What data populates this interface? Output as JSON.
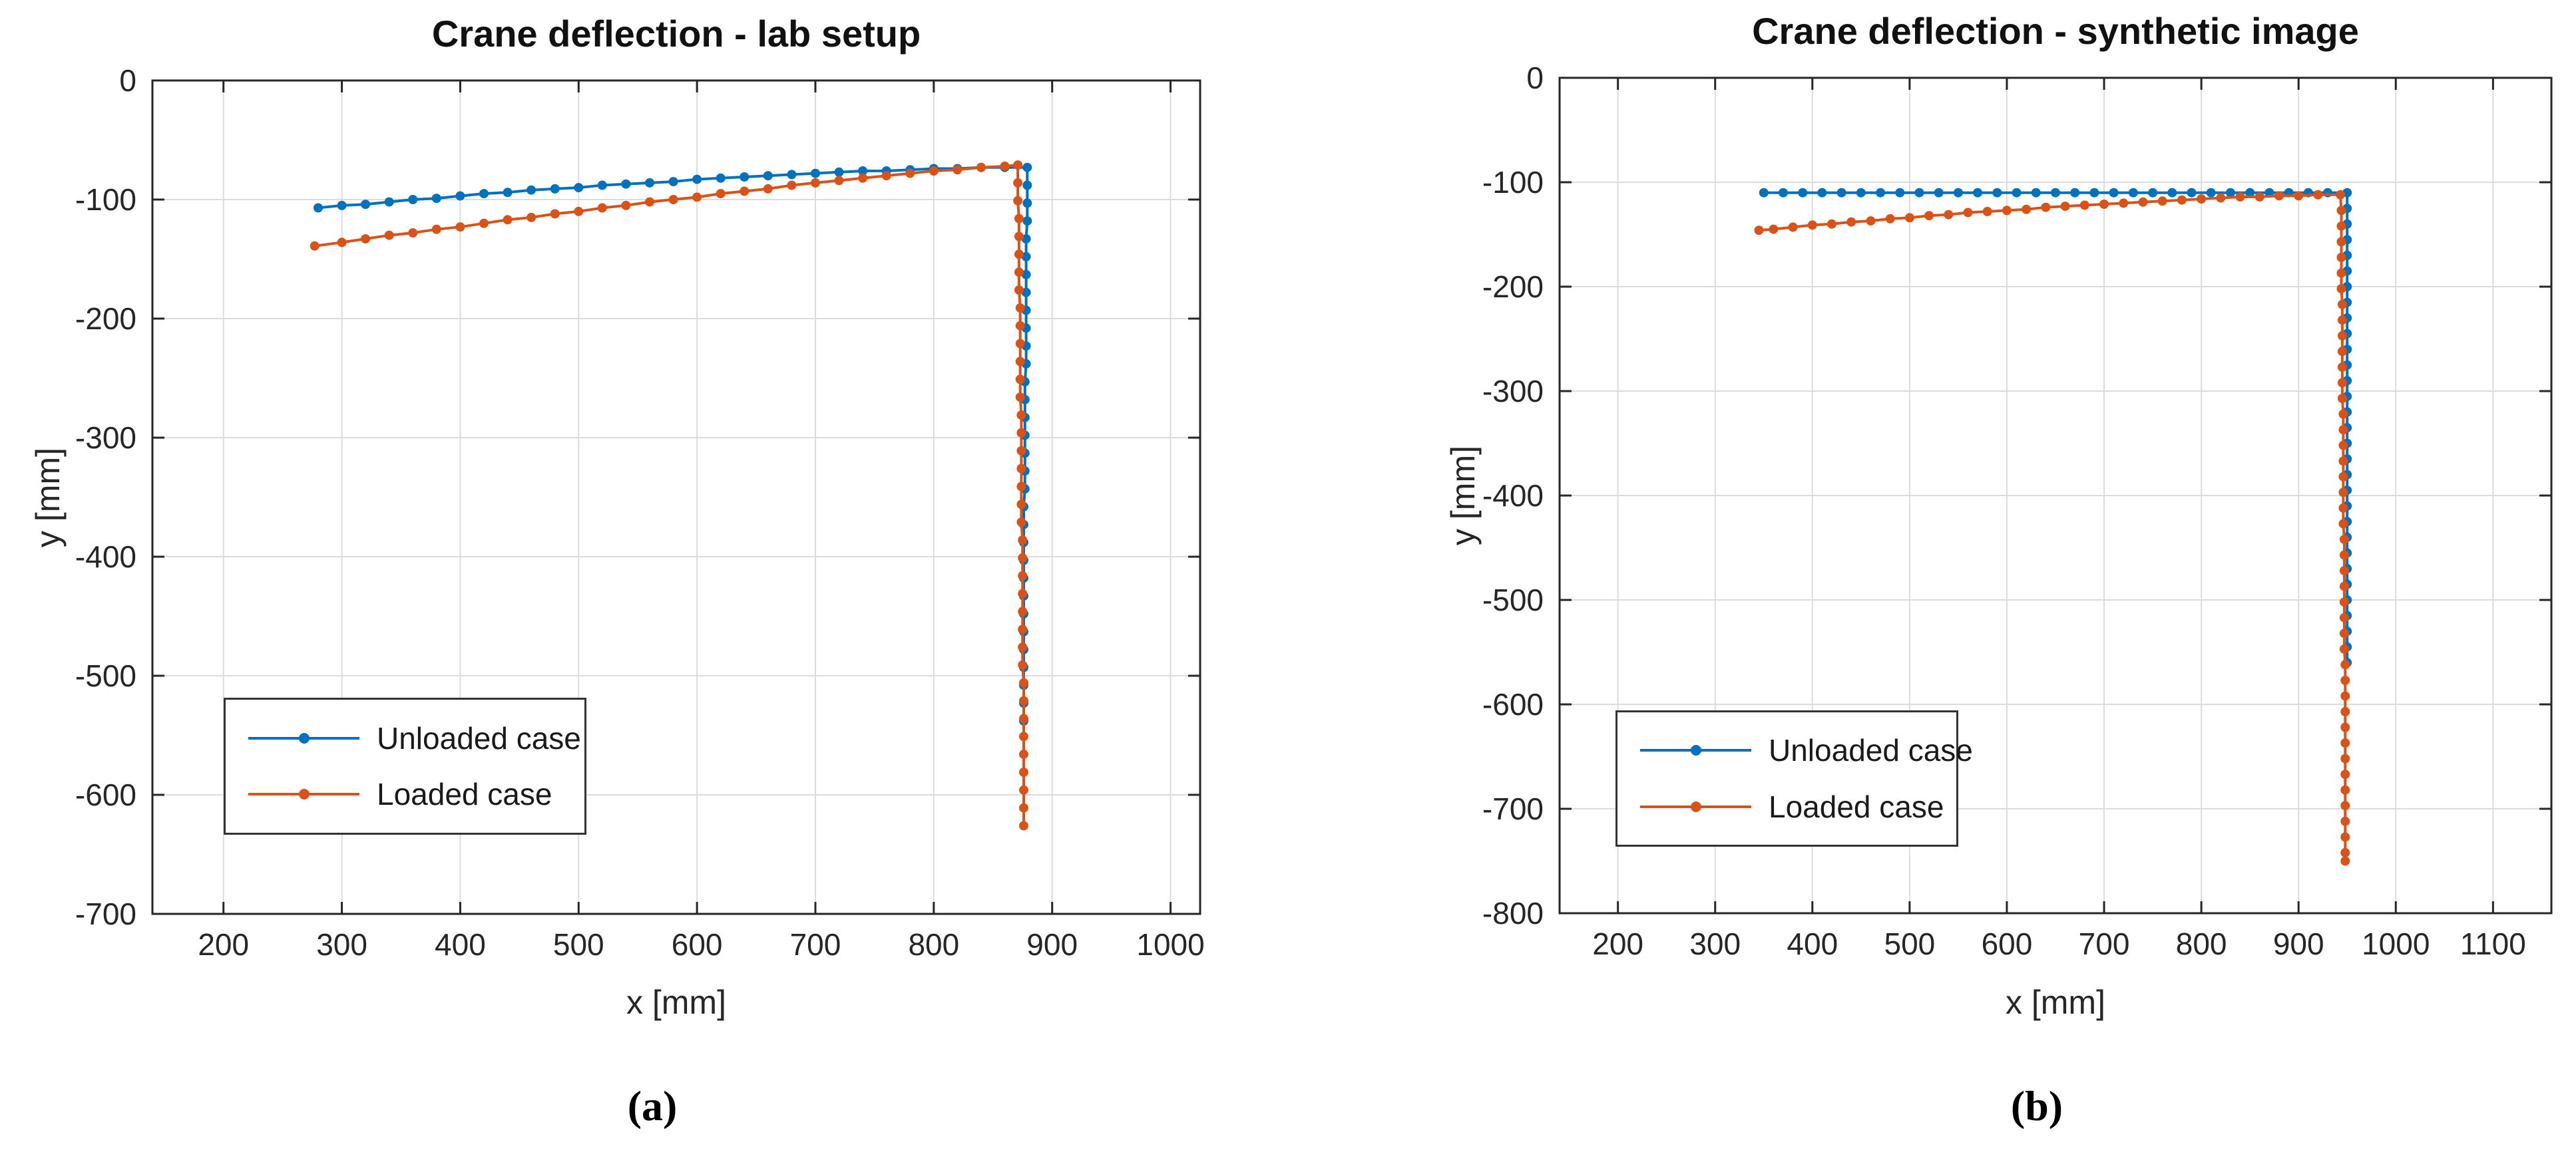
{
  "figure": {
    "background": "#ffffff",
    "captions": [
      {
        "label": "(a)"
      },
      {
        "label": "(b)"
      }
    ]
  },
  "palette": {
    "series_blue": "#0072BD",
    "series_orange": "#D95319",
    "axis_box": "#262626",
    "grid_line": "#dcdcdc",
    "tick_label": "#262626",
    "title_text": "#111111",
    "legend_border": "#333333"
  },
  "chart_data": [
    {
      "type": "line",
      "title": "Crane deflection - lab setup",
      "xlabel": "x [mm]",
      "ylabel": "y [mm]",
      "xlim": [
        140,
        1025
      ],
      "ylim": [
        -700,
        0
      ],
      "xticks": [
        200,
        300,
        400,
        500,
        600,
        700,
        800,
        900,
        1000
      ],
      "yticks": [
        0,
        -100,
        -200,
        -300,
        -400,
        -500,
        -600,
        -700
      ],
      "grid": true,
      "legend_position": "lower-left-inside",
      "series": [
        {
          "name": "Unloaded case",
          "color": "#0072BD",
          "marker": "dot",
          "points": [
            [
              280,
              -107
            ],
            [
              300,
              -105
            ],
            [
              320,
              -104
            ],
            [
              340,
              -102
            ],
            [
              360,
              -100
            ],
            [
              380,
              -99
            ],
            [
              400,
              -97
            ],
            [
              420,
              -95
            ],
            [
              440,
              -94
            ],
            [
              460,
              -92
            ],
            [
              480,
              -91
            ],
            [
              500,
              -90
            ],
            [
              520,
              -88
            ],
            [
              540,
              -87
            ],
            [
              560,
              -86
            ],
            [
              580,
              -85
            ],
            [
              600,
              -83
            ],
            [
              620,
              -82
            ],
            [
              640,
              -81
            ],
            [
              660,
              -80
            ],
            [
              680,
              -79
            ],
            [
              700,
              -78
            ],
            [
              720,
              -77
            ],
            [
              740,
              -76
            ],
            [
              760,
              -76
            ],
            [
              780,
              -75
            ],
            [
              800,
              -74
            ],
            [
              820,
              -74
            ],
            [
              840,
              -73
            ],
            [
              860,
              -73
            ],
            [
              879,
              -73
            ],
            [
              879,
              -88
            ],
            [
              879,
              -103
            ],
            [
              879,
              -118
            ],
            [
              878,
              -133
            ],
            [
              878,
              -148
            ],
            [
              878,
              -163
            ],
            [
              878,
              -178
            ],
            [
              878,
              -193
            ],
            [
              878,
              -208
            ],
            [
              878,
              -223
            ],
            [
              878,
              -238
            ],
            [
              877,
              -253
            ],
            [
              877,
              -268
            ],
            [
              877,
              -283
            ],
            [
              877,
              -298
            ],
            [
              877,
              -313
            ],
            [
              877,
              -328
            ],
            [
              877,
              -343
            ],
            [
              876,
              -358
            ],
            [
              876,
              -373
            ],
            [
              876,
              -388
            ],
            [
              876,
              -403
            ],
            [
              876,
              -418
            ],
            [
              876,
              -433
            ],
            [
              876,
              -448
            ],
            [
              876,
              -463
            ],
            [
              876,
              -478
            ],
            [
              876,
              -493
            ],
            [
              876,
              -508
            ],
            [
              876,
              -523
            ],
            [
              876,
              -538
            ]
          ]
        },
        {
          "name": "Loaded case",
          "color": "#D95319",
          "marker": "dot",
          "points": [
            [
              277,
              -139
            ],
            [
              300,
              -136
            ],
            [
              320,
              -133
            ],
            [
              340,
              -130
            ],
            [
              360,
              -128
            ],
            [
              380,
              -125
            ],
            [
              400,
              -123
            ],
            [
              420,
              -120
            ],
            [
              440,
              -117
            ],
            [
              460,
              -115
            ],
            [
              480,
              -112
            ],
            [
              500,
              -110
            ],
            [
              520,
              -107
            ],
            [
              540,
              -105
            ],
            [
              560,
              -102
            ],
            [
              580,
              -100
            ],
            [
              600,
              -98
            ],
            [
              620,
              -95
            ],
            [
              640,
              -93
            ],
            [
              660,
              -91
            ],
            [
              680,
              -88
            ],
            [
              700,
              -86
            ],
            [
              720,
              -84
            ],
            [
              740,
              -82
            ],
            [
              760,
              -80
            ],
            [
              780,
              -78
            ],
            [
              800,
              -76
            ],
            [
              820,
              -75
            ],
            [
              840,
              -73
            ],
            [
              860,
              -72
            ],
            [
              871,
              -71
            ],
            [
              871,
              -86
            ],
            [
              871,
              -101
            ],
            [
              872,
              -116
            ],
            [
              872,
              -131
            ],
            [
              872,
              -146
            ],
            [
              872,
              -161
            ],
            [
              872,
              -176
            ],
            [
              873,
              -191
            ],
            [
              873,
              -206
            ],
            [
              873,
              -221
            ],
            [
              873,
              -236
            ],
            [
              873,
              -251
            ],
            [
              873,
              -266
            ],
            [
              874,
              -281
            ],
            [
              874,
              -296
            ],
            [
              874,
              -311
            ],
            [
              874,
              -326
            ],
            [
              874,
              -341
            ],
            [
              874,
              -356
            ],
            [
              874,
              -371
            ],
            [
              875,
              -386
            ],
            [
              875,
              -401
            ],
            [
              875,
              -416
            ],
            [
              875,
              -431
            ],
            [
              875,
              -446
            ],
            [
              875,
              -461
            ],
            [
              875,
              -476
            ],
            [
              875,
              -491
            ],
            [
              876,
              -506
            ],
            [
              876,
              -521
            ],
            [
              876,
              -536
            ],
            [
              876,
              -551
            ],
            [
              876,
              -566
            ],
            [
              876,
              -581
            ],
            [
              876,
              -596
            ],
            [
              876,
              -611
            ],
            [
              876,
              -626
            ]
          ]
        }
      ]
    },
    {
      "type": "line",
      "title": "Crane deflection - synthetic image",
      "xlabel": "x [mm]",
      "ylabel": "y [mm]",
      "xlim": [
        140,
        1160
      ],
      "ylim": [
        -800,
        0
      ],
      "xticks": [
        200,
        300,
        400,
        500,
        600,
        700,
        800,
        900,
        1000,
        1100
      ],
      "yticks": [
        0,
        -100,
        -200,
        -300,
        -400,
        -500,
        -600,
        -700,
        -800
      ],
      "grid": true,
      "legend_position": "lower-left-inside",
      "series": [
        {
          "name": "Unloaded case",
          "color": "#0072BD",
          "marker": "dot",
          "points": [
            [
              350,
              -110
            ],
            [
              370,
              -110
            ],
            [
              390,
              -110
            ],
            [
              410,
              -110
            ],
            [
              430,
              -110
            ],
            [
              450,
              -110
            ],
            [
              470,
              -110
            ],
            [
              490,
              -110
            ],
            [
              510,
              -110
            ],
            [
              530,
              -110
            ],
            [
              550,
              -110
            ],
            [
              570,
              -110
            ],
            [
              590,
              -110
            ],
            [
              610,
              -110
            ],
            [
              630,
              -110
            ],
            [
              650,
              -110
            ],
            [
              670,
              -110
            ],
            [
              690,
              -110
            ],
            [
              710,
              -110
            ],
            [
              730,
              -110
            ],
            [
              750,
              -110
            ],
            [
              770,
              -110
            ],
            [
              790,
              -110
            ],
            [
              810,
              -110
            ],
            [
              830,
              -110
            ],
            [
              850,
              -110
            ],
            [
              870,
              -110
            ],
            [
              890,
              -110
            ],
            [
              910,
              -110
            ],
            [
              930,
              -110
            ],
            [
              950,
              -110
            ],
            [
              950,
              -125
            ],
            [
              950,
              -140
            ],
            [
              950,
              -155
            ],
            [
              950,
              -170
            ],
            [
              950,
              -185
            ],
            [
              950,
              -200
            ],
            [
              950,
              -215
            ],
            [
              950,
              -230
            ],
            [
              950,
              -245
            ],
            [
              950,
              -260
            ],
            [
              950,
              -275
            ],
            [
              950,
              -290
            ],
            [
              950,
              -305
            ],
            [
              950,
              -320
            ],
            [
              950,
              -335
            ],
            [
              950,
              -350
            ],
            [
              950,
              -365
            ],
            [
              950,
              -380
            ],
            [
              950,
              -395
            ],
            [
              950,
              -410
            ],
            [
              950,
              -425
            ],
            [
              950,
              -440
            ],
            [
              950,
              -455
            ],
            [
              950,
              -470
            ],
            [
              950,
              -485
            ],
            [
              950,
              -500
            ],
            [
              950,
              -515
            ],
            [
              950,
              -530
            ],
            [
              950,
              -545
            ],
            [
              950,
              -560
            ]
          ]
        },
        {
          "name": "Loaded case",
          "color": "#D95319",
          "marker": "dot",
          "points": [
            [
              345,
              -146
            ],
            [
              360,
              -145
            ],
            [
              380,
              -143
            ],
            [
              400,
              -141
            ],
            [
              420,
              -140
            ],
            [
              440,
              -138
            ],
            [
              460,
              -137
            ],
            [
              480,
              -135
            ],
            [
              500,
              -134
            ],
            [
              520,
              -132
            ],
            [
              540,
              -131
            ],
            [
              560,
              -129
            ],
            [
              580,
              -128
            ],
            [
              600,
              -127
            ],
            [
              620,
              -126
            ],
            [
              640,
              -124
            ],
            [
              660,
              -123
            ],
            [
              680,
              -122
            ],
            [
              700,
              -121
            ],
            [
              720,
              -120
            ],
            [
              740,
              -119
            ],
            [
              760,
              -118
            ],
            [
              780,
              -117
            ],
            [
              800,
              -116
            ],
            [
              820,
              -115
            ],
            [
              840,
              -114
            ],
            [
              860,
              -114
            ],
            [
              880,
              -113
            ],
            [
              900,
              -113
            ],
            [
              920,
              -112
            ],
            [
              943,
              -112
            ],
            [
              944,
              -127
            ],
            [
              944,
              -142
            ],
            [
              944,
              -157
            ],
            [
              944,
              -172
            ],
            [
              944,
              -187
            ],
            [
              944,
              -202
            ],
            [
              945,
              -217
            ],
            [
              945,
              -232
            ],
            [
              945,
              -247
            ],
            [
              945,
              -262
            ],
            [
              945,
              -277
            ],
            [
              945,
              -292
            ],
            [
              945,
              -307
            ],
            [
              946,
              -322
            ],
            [
              946,
              -337
            ],
            [
              946,
              -352
            ],
            [
              946,
              -367
            ],
            [
              946,
              -382
            ],
            [
              946,
              -397
            ],
            [
              946,
              -412
            ],
            [
              946,
              -427
            ],
            [
              947,
              -442
            ],
            [
              947,
              -457
            ],
            [
              947,
              -472
            ],
            [
              947,
              -487
            ],
            [
              947,
              -502
            ],
            [
              947,
              -517
            ],
            [
              947,
              -532
            ],
            [
              947,
              -547
            ],
            [
              948,
              -562
            ],
            [
              948,
              -577
            ],
            [
              948,
              -592
            ],
            [
              948,
              -607
            ],
            [
              948,
              -622
            ],
            [
              948,
              -637
            ],
            [
              948,
              -652
            ],
            [
              948,
              -667
            ],
            [
              948,
              -682
            ],
            [
              948,
              -697
            ],
            [
              948,
              -712
            ],
            [
              948,
              -727
            ],
            [
              948,
              -742
            ],
            [
              948,
              -750
            ]
          ]
        }
      ]
    }
  ]
}
